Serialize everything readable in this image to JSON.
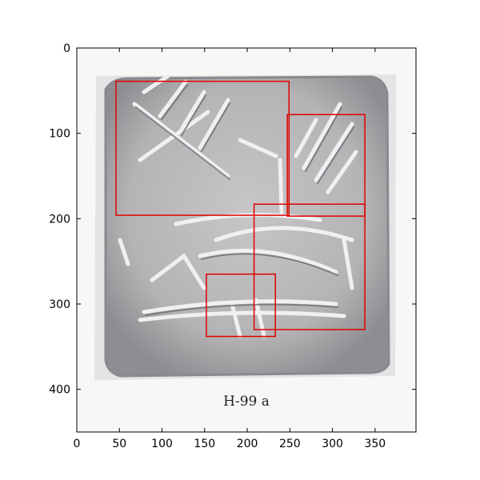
{
  "figure": {
    "image": {
      "caption": "H-99 a",
      "description_icon": "seal-impression-photo"
    },
    "axes": {
      "x_ticks": [
        0,
        50,
        100,
        150,
        200,
        250,
        300,
        350
      ],
      "y_ticks": [
        0,
        100,
        200,
        300,
        400
      ],
      "x_range": [
        0,
        398
      ],
      "y_range": [
        450,
        0
      ]
    },
    "bounding_boxes": [
      {
        "x_min": 46,
        "y_min": 39,
        "x_max": 249,
        "y_max": 196
      },
      {
        "x_min": 247,
        "y_min": 78,
        "x_max": 338,
        "y_max": 197
      },
      {
        "x_min": 208,
        "y_min": 183,
        "x_max": 338,
        "y_max": 330
      },
      {
        "x_min": 152,
        "y_min": 265,
        "x_max": 233,
        "y_max": 338
      }
    ],
    "colors": {
      "box_stroke": "#e00000",
      "paper": "#f7f7f5",
      "seal_face": "#b9b9bb"
    }
  }
}
